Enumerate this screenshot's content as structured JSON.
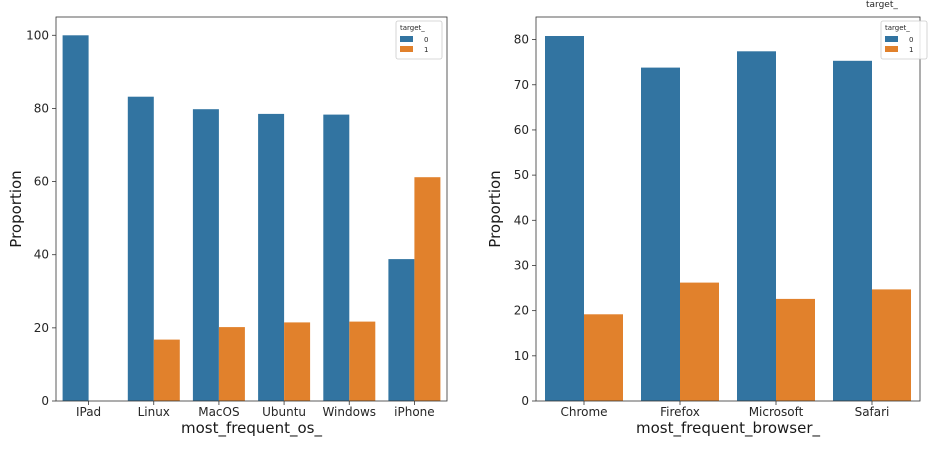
{
  "colors": {
    "series_0": "#3274a1",
    "series_1": "#e1812c"
  },
  "legend_title": "target_",
  "chart_data": [
    {
      "type": "bar",
      "categories": [
        "IPad",
        "Linux",
        "MacOS",
        "Ubuntu",
        "Windows",
        "iPhone"
      ],
      "series": [
        {
          "name": "0",
          "values": [
            100,
            83.2,
            79.8,
            78.5,
            78.3,
            38.8
          ]
        },
        {
          "name": "1",
          "values": [
            0,
            16.8,
            20.2,
            21.5,
            21.7,
            61.2
          ]
        }
      ],
      "xlabel": "most_frequent_os_",
      "ylabel": "Proportion",
      "ylim": [
        0,
        105
      ],
      "yticks": [
        0,
        20,
        40,
        60,
        80,
        100
      ],
      "legend_title": "target_",
      "legend_position": "top-right",
      "grid": false
    },
    {
      "type": "bar",
      "categories": [
        "Chrome",
        "Firefox",
        "Microsoft",
        "Safari"
      ],
      "series": [
        {
          "name": "0",
          "values": [
            80.8,
            73.8,
            77.4,
            75.3
          ]
        },
        {
          "name": "1",
          "values": [
            19.2,
            26.2,
            22.6,
            24.7
          ]
        }
      ],
      "xlabel": "most_frequent_browser_",
      "ylabel": "Proportion",
      "ylim": [
        0,
        85
      ],
      "yticks": [
        0,
        10,
        20,
        30,
        40,
        50,
        60,
        70,
        80
      ],
      "legend_title": "target_",
      "legend_position": "top-right",
      "grid": false
    }
  ]
}
